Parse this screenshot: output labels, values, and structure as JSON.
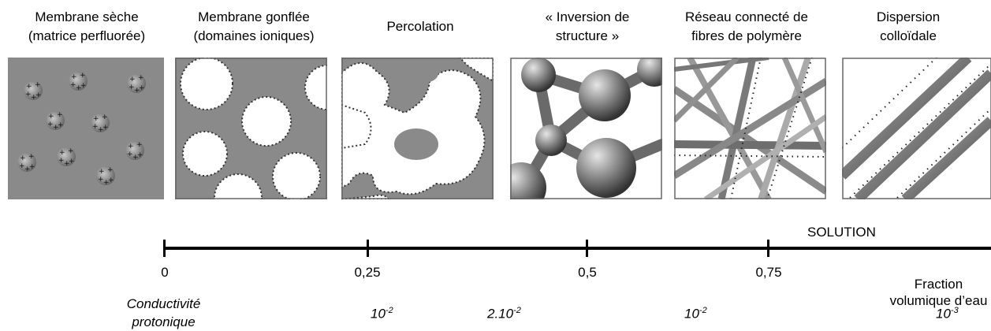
{
  "titles": {
    "t1": [
      "Membrane sèche",
      "(matrice perfluorée)"
    ],
    "t2": [
      "Membrane gonflée",
      "(domaines ioniques)"
    ],
    "t3": [
      "Percolation"
    ],
    "t4": [
      "« Inversion de",
      "structure »"
    ],
    "t5": [
      "Réseau connecté de",
      "fibres de polymère"
    ],
    "t6": [
      "Dispersion",
      "colloïdale"
    ]
  },
  "axis": {
    "ticks": [
      "0",
      "0,25",
      "0,5",
      "0,75"
    ],
    "solution_label": "SOLUTION",
    "fraction_label": [
      "Fraction",
      "volumique d’eau"
    ]
  },
  "conductivity": {
    "label": [
      "Conductivité",
      "protonique"
    ],
    "values": [
      {
        "base": "10",
        "exp": "-2"
      },
      {
        "base": "2.10",
        "exp": "-2"
      },
      {
        "base": "10",
        "exp": "-2"
      },
      {
        "base": "10",
        "exp": "-3"
      }
    ]
  },
  "colors": {
    "matrix_gray": "#8a8a8a",
    "water_white": "#ffffff",
    "sphere_gray": "#7a7a7a",
    "axis": "#000000"
  }
}
